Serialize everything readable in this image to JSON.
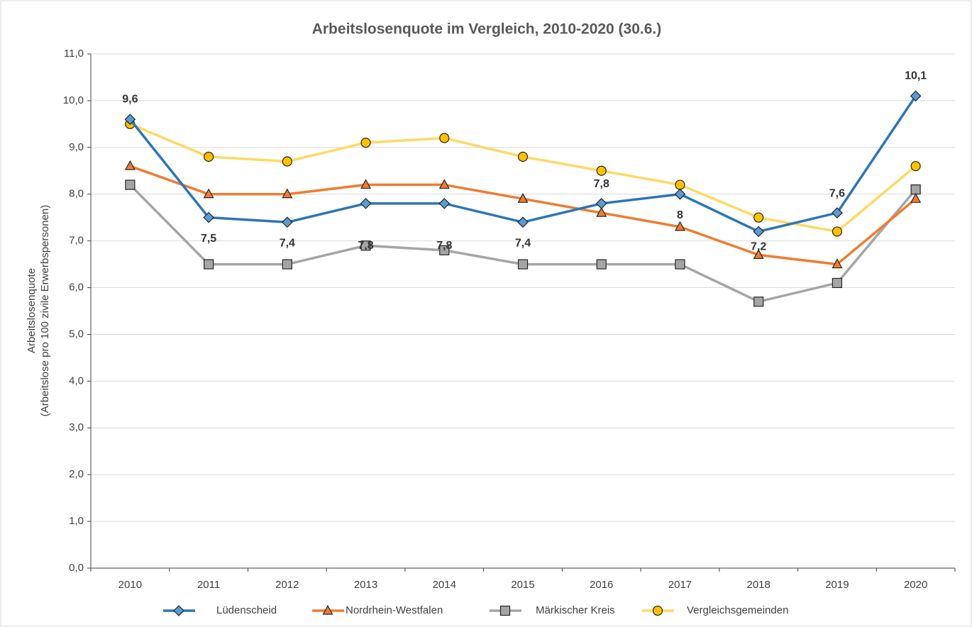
{
  "chart_data": {
    "type": "line",
    "title": "Arbeitslosenquote im Vergleich, 2010-2020 (30.6.)",
    "y_label": [
      "Arbeitslosenquote",
      "(Arbeitslose pro 100 zivile Erwerbspersonen)"
    ],
    "categories": [
      "2010",
      "2011",
      "2012",
      "2013",
      "2014",
      "2015",
      "2016",
      "2017",
      "2018",
      "2019",
      "2020"
    ],
    "series": [
      {
        "name": "Lüdenscheid",
        "color": "#2e75b6",
        "marker": "diamond",
        "marker_color": "#5b9bd5",
        "values": [
          9.6,
          7.5,
          7.4,
          7.8,
          7.8,
          7.4,
          7.8,
          8.0,
          7.2,
          7.6,
          10.1
        ],
        "value_labels": [
          "9,6",
          "7,5",
          "7,4",
          "7,8",
          "7,8",
          "7,4",
          "7,8",
          "8",
          "7,2",
          "7,6",
          "10,1"
        ]
      },
      {
        "name": "Nordrhein-Westfalen",
        "color": "#ed7d31",
        "marker": "triangle",
        "marker_color": "#ed7d31",
        "values": [
          8.6,
          8.0,
          8.0,
          8.2,
          8.2,
          7.9,
          7.6,
          7.3,
          6.7,
          6.5,
          7.9
        ]
      },
      {
        "name": "Märkischer Kreis",
        "color": "#a5a5a5",
        "marker": "square",
        "marker_color": "#a5a5a5",
        "values": [
          8.2,
          6.5,
          6.5,
          6.9,
          6.8,
          6.5,
          6.5,
          6.5,
          5.7,
          6.1,
          8.1
        ]
      },
      {
        "name": "Vergleichsgemeinden",
        "color": "#ffd966",
        "marker": "circle",
        "marker_color": "#ffc000",
        "values": [
          9.5,
          8.8,
          8.7,
          9.1,
          9.2,
          8.8,
          8.5,
          8.2,
          7.5,
          7.2,
          8.6
        ]
      }
    ],
    "ylim": [
      0,
      11
    ],
    "yticks": [
      {
        "value": 0,
        "label": "0,0"
      },
      {
        "value": 1,
        "label": "1,0"
      },
      {
        "value": 2,
        "label": "2,0"
      },
      {
        "value": 3,
        "label": "3,0"
      },
      {
        "value": 4,
        "label": "4,0"
      },
      {
        "value": 5,
        "label": "5,0"
      },
      {
        "value": 6,
        "label": "6,0"
      },
      {
        "value": 7,
        "label": "7,0"
      },
      {
        "value": 8,
        "label": "8,0"
      },
      {
        "value": 9,
        "label": "9,0"
      },
      {
        "value": 10,
        "label": "10,0"
      },
      {
        "value": 11,
        "label": "11,0"
      }
    ],
    "grid": true,
    "legend": "bottom"
  }
}
